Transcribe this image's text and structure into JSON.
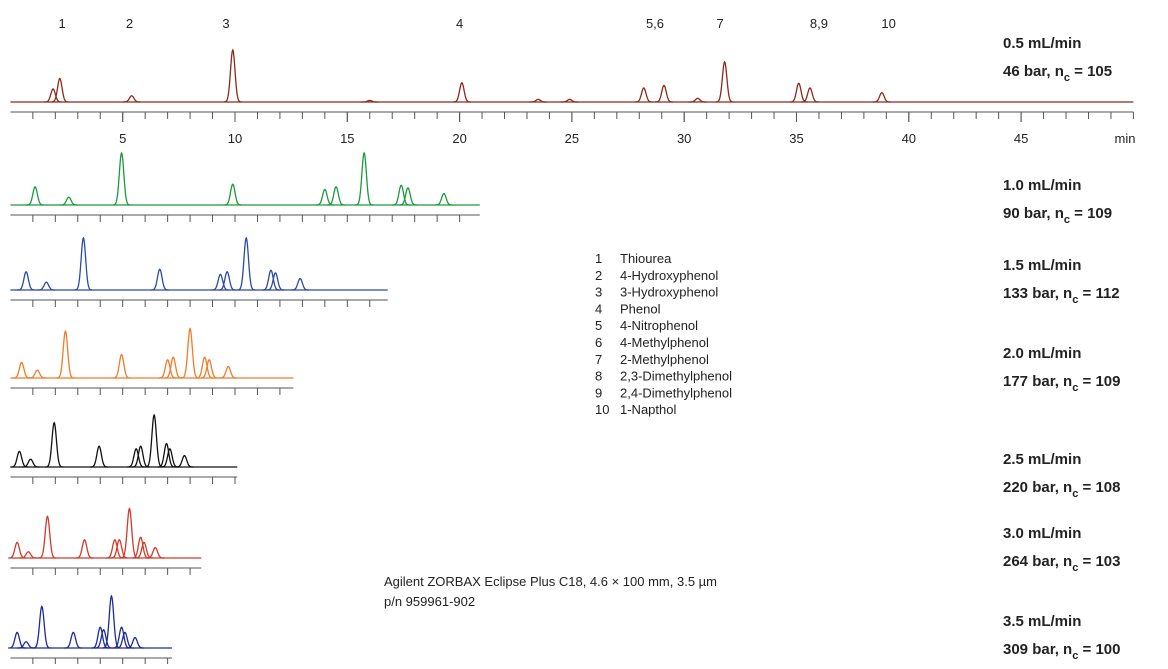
{
  "chart_data": {
    "type": "chromatogram",
    "x_label": "min",
    "xticks": [
      5,
      10,
      15,
      20,
      25,
      30,
      35,
      40,
      45
    ],
    "peak_labels": [
      {
        "label": "1",
        "time": 2.3
      },
      {
        "label": "2",
        "time": 5.3
      },
      {
        "label": "3",
        "time": 9.6
      },
      {
        "label": "4",
        "time": 20
      },
      {
        "label": "5,6",
        "time": 28.7
      },
      {
        "label": "7",
        "time": 31.6
      },
      {
        "label": "8,9",
        "time": 36
      },
      {
        "label": "10",
        "time": 39.1
      }
    ],
    "traces": [
      {
        "flow": "0.5 mL/min",
        "condition": {
          "pre": "46 bar, n",
          "sub": "c",
          "post": " = 105"
        },
        "color": "#8b2a1a",
        "xlim": [
          0,
          50
        ],
        "times": [
          1.9,
          2.2,
          5.4,
          9.9,
          16,
          20.1,
          23.5,
          24.9,
          28.2,
          29.1,
          30.6,
          31.8,
          35.1,
          35.6,
          38.8
        ],
        "heights": [
          0.25,
          0.45,
          0.12,
          1.0,
          0.03,
          0.37,
          0.05,
          0.05,
          0.27,
          0.32,
          0.07,
          0.77,
          0.36,
          0.27,
          0.18
        ]
      },
      {
        "flow": "1.0 mL/min",
        "condition": {
          "pre": "90 bar, n",
          "sub": "c",
          "post": " = 109"
        },
        "color": "#1a9a3c",
        "xlim": [
          0,
          20.9
        ],
        "times": [
          1.1,
          2.6,
          4.95,
          9.9,
          14,
          14.5,
          15.75,
          17.4,
          17.7,
          19.3
        ],
        "heights": [
          0.35,
          0.15,
          1.0,
          0.4,
          0.3,
          0.35,
          1.0,
          0.38,
          0.33,
          0.22
        ]
      },
      {
        "flow": "1.5 mL/min",
        "condition": {
          "pre": "133 bar, n",
          "sub": "c",
          "post": " = 112"
        },
        "color": "#2b4aa8",
        "xlim": [
          0,
          16.8
        ],
        "times": [
          0.7,
          1.6,
          3.25,
          6.65,
          9.35,
          9.65,
          10.5,
          11.6,
          11.8,
          12.9
        ],
        "heights": [
          0.35,
          0.15,
          1.0,
          0.4,
          0.3,
          0.35,
          1.0,
          0.38,
          0.33,
          0.22
        ]
      },
      {
        "flow": "2.0 mL/min",
        "condition": {
          "pre": "177 bar, n",
          "sub": "c",
          "post": " = 109"
        },
        "color": "#f07c2a",
        "xlim": [
          0,
          12.6
        ],
        "times": [
          0.5,
          1.2,
          2.45,
          4.95,
          7,
          7.25,
          8,
          8.65,
          8.85,
          9.7
        ],
        "heights": [
          0.3,
          0.15,
          0.9,
          0.45,
          0.35,
          0.4,
          0.95,
          0.4,
          0.35,
          0.22
        ]
      },
      {
        "flow": "2.5 mL/min",
        "condition": {
          "pre": "220 bar,  n",
          "sub": "c",
          "post": " = 108"
        },
        "color": "#111111",
        "xlim": [
          0,
          10.1
        ],
        "times": [
          0.4,
          0.9,
          1.95,
          3.95,
          5.6,
          5.8,
          6.4,
          6.95,
          7.1,
          7.75
        ],
        "heights": [
          0.3,
          0.15,
          0.85,
          0.4,
          0.35,
          0.4,
          1.0,
          0.45,
          0.35,
          0.22
        ]
      },
      {
        "flow": "3.0 mL/min",
        "condition": {
          "pre": "264 bar, n",
          "sub": "c",
          "post": " = 103"
        },
        "color": "#d23a2a",
        "xlim": [
          0,
          8.5
        ],
        "times": [
          0.3,
          0.8,
          1.65,
          3.3,
          4.65,
          4.85,
          5.3,
          5.8,
          5.95,
          6.45
        ],
        "heights": [
          0.3,
          0.12,
          0.8,
          0.35,
          0.35,
          0.35,
          0.95,
          0.4,
          0.3,
          0.2
        ]
      },
      {
        "flow": "3.5 mL/min",
        "condition": {
          "pre": "309 bar, n",
          "sub": "c",
          "post": " = 100"
        },
        "color": "#1d2a9a",
        "xlim": [
          0,
          7.2
        ],
        "times": [
          0.3,
          0.7,
          1.4,
          2.8,
          4,
          4.15,
          4.5,
          4.95,
          5.1,
          5.55
        ],
        "heights": [
          0.3,
          0.12,
          0.8,
          0.3,
          0.4,
          0.35,
          1.0,
          0.4,
          0.3,
          0.2
        ]
      }
    ],
    "legend": [
      [
        "1",
        "Thiourea"
      ],
      [
        "2",
        "4-Hydroxyphenol"
      ],
      [
        "3",
        "3-Hydroxyphenol"
      ],
      [
        "4",
        "Phenol"
      ],
      [
        "5",
        "4-Nitrophenol"
      ],
      [
        "6",
        "4-Methylphenol"
      ],
      [
        "7",
        "2-Methylphenol"
      ],
      [
        "8",
        "2,3-Dimethylphenol"
      ],
      [
        "9",
        "2,4-Dimethylphenol"
      ],
      [
        "10",
        "1-Napthol"
      ]
    ],
    "caption": [
      "Agilent ZORBAX Eclipse Plus C18, 4.6 × 100 mm, 3.5 µm",
      "p/n 959961-902"
    ]
  }
}
